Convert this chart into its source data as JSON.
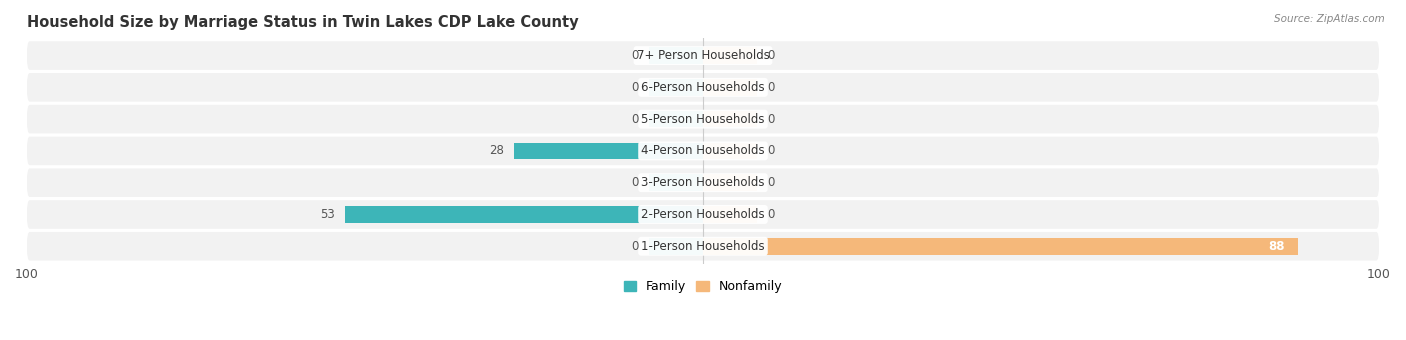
{
  "title": "Household Size by Marriage Status in Twin Lakes CDP Lake County",
  "source": "Source: ZipAtlas.com",
  "categories": [
    "7+ Person Households",
    "6-Person Households",
    "5-Person Households",
    "4-Person Households",
    "3-Person Households",
    "2-Person Households",
    "1-Person Households"
  ],
  "family_values": [
    0,
    0,
    0,
    28,
    0,
    53,
    0
  ],
  "nonfamily_values": [
    0,
    0,
    0,
    0,
    0,
    0,
    88
  ],
  "family_color": "#3db5b8",
  "nonfamily_color": "#f5b87a",
  "xlim": [
    -100,
    100
  ],
  "bar_height": 0.52,
  "title_fontsize": 10.5,
  "label_fontsize": 8.5,
  "tick_fontsize": 9,
  "legend_fontsize": 9,
  "stub_size": 8
}
